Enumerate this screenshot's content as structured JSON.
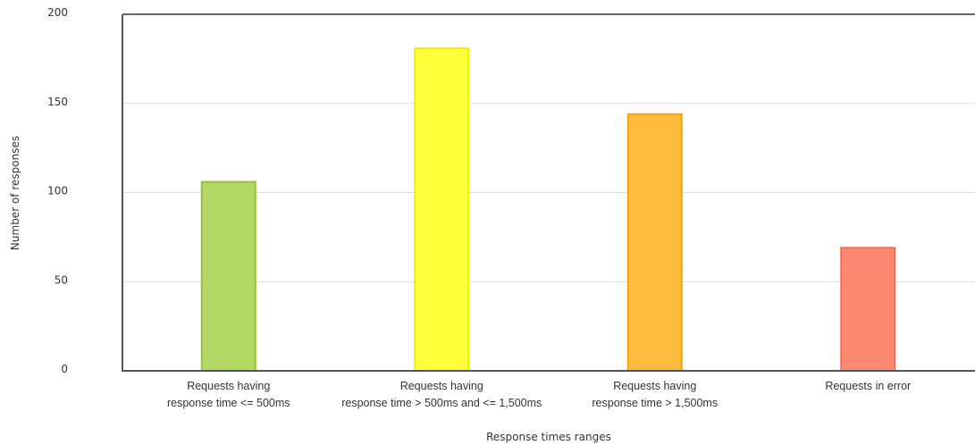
{
  "chart_data": {
    "type": "bar",
    "categories": [
      [
        "Requests having",
        "response time <= 500ms"
      ],
      [
        "Requests having",
        "response time > 500ms and <= 1,500ms"
      ],
      [
        "Requests having",
        "response time > 1,500ms"
      ],
      [
        "Requests in error"
      ]
    ],
    "values": [
      106,
      181,
      144,
      69
    ],
    "colors": [
      "#b3d965",
      "#ffff3a",
      "#ffba40",
      "#ff8a73"
    ],
    "border_colors": [
      "#97c234",
      "#f0f000",
      "#f5a300",
      "#f56b50"
    ],
    "xlabel": "Response times ranges",
    "ylabel": "Number of responses",
    "ylim": [
      0,
      200
    ],
    "yticks": [
      0,
      50,
      100,
      150,
      200
    ],
    "grid": true
  }
}
